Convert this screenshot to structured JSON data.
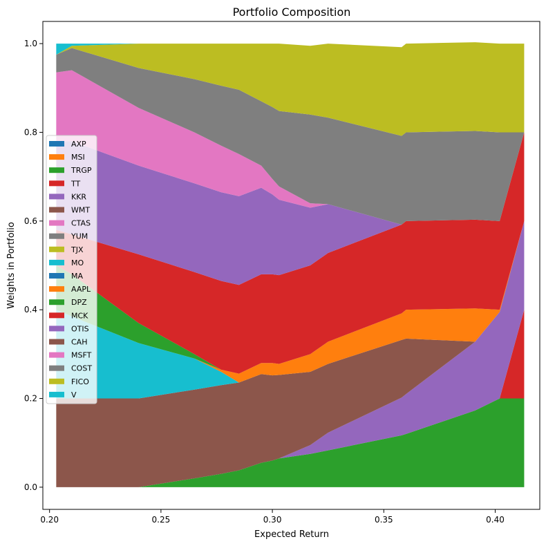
{
  "chart_data": {
    "type": "area",
    "title": "Portfolio Composition",
    "xlabel": "Expected Return",
    "ylabel": "Weights in Portfolio",
    "xlim": [
      0.197,
      0.42
    ],
    "ylim": [
      -0.05,
      1.05
    ],
    "xticks": [
      "0.20",
      "0.25",
      "0.30",
      "0.35",
      "0.40"
    ],
    "xtick_values": [
      0.2,
      0.25,
      0.3,
      0.35,
      0.4
    ],
    "yticks": [
      "0.0",
      "0.2",
      "0.4",
      "0.6",
      "0.8",
      "1.0"
    ],
    "ytick_values": [
      0.0,
      0.2,
      0.4,
      0.6,
      0.8,
      1.0
    ],
    "legend_position": "center-left",
    "x": [
      0.203,
      0.21,
      0.24,
      0.265,
      0.277,
      0.285,
      0.295,
      0.3,
      0.303,
      0.317,
      0.325,
      0.358,
      0.36,
      0.391,
      0.402,
      0.413
    ],
    "series": [
      {
        "name": "AXP",
        "color": "#1f77b4",
        "values": [
          0,
          0,
          0,
          0,
          0,
          0,
          0,
          0,
          0,
          0,
          0,
          0,
          0,
          0,
          0,
          0
        ]
      },
      {
        "name": "MSI",
        "color": "#ff7f0e",
        "values": [
          0,
          0,
          0,
          0,
          0,
          0,
          0,
          0,
          0,
          0,
          0,
          0,
          0,
          0,
          0,
          0
        ]
      },
      {
        "name": "TRGP",
        "color": "#2ca02c",
        "values": [
          0,
          0,
          0,
          0.02,
          0.03,
          0.038,
          0.055,
          0.06,
          0.065,
          0.075,
          0.083,
          0.117,
          0.12,
          0.173,
          0.2,
          0.2
        ]
      },
      {
        "name": "TT",
        "color": "#d62728",
        "values": [
          0,
          0,
          0,
          0,
          0,
          0,
          0,
          0,
          0,
          0,
          0,
          0,
          0,
          0,
          0,
          0.2
        ]
      },
      {
        "name": "KKR",
        "color": "#9467bd",
        "values": [
          0,
          0,
          0,
          0,
          0,
          0,
          0,
          0,
          0,
          0.02,
          0.04,
          0.085,
          0.09,
          0.155,
          0.195,
          0.2
        ]
      },
      {
        "name": "WMT",
        "color": "#8c564b",
        "values": [
          0.2,
          0.2,
          0.2,
          0.2,
          0.2,
          0.198,
          0.2,
          0.192,
          0.188,
          0.165,
          0.155,
          0.13,
          0.125,
          0,
          0,
          0
        ]
      },
      {
        "name": "CTAS",
        "color": "#e377c2",
        "values": [
          0,
          0,
          0,
          0,
          0,
          0,
          0,
          0,
          0,
          0,
          0,
          0,
          0,
          0,
          0,
          0
        ]
      },
      {
        "name": "YUM",
        "color": "#7f7f7f",
        "values": [
          0,
          0,
          0,
          0,
          0,
          0,
          0,
          0,
          0,
          0,
          0,
          0,
          0,
          0,
          0,
          0
        ]
      },
      {
        "name": "TJX",
        "color": "#bcbd22",
        "values": [
          0,
          0,
          0,
          0,
          0,
          0,
          0,
          0,
          0,
          0,
          0,
          0,
          0,
          0,
          0,
          0
        ]
      },
      {
        "name": "MO",
        "color": "#17becf",
        "values": [
          0.2,
          0.185,
          0.125,
          0.07,
          0.03,
          0,
          0,
          0,
          0,
          0,
          0,
          0,
          0,
          0,
          0,
          0
        ]
      },
      {
        "name": "MA",
        "color": "#1f77b4",
        "values": [
          0,
          0,
          0,
          0,
          0,
          0,
          0,
          0,
          0,
          0,
          0,
          0,
          0,
          0,
          0,
          0
        ]
      },
      {
        "name": "AAPL",
        "color": "#ff7f0e",
        "values": [
          0,
          0,
          0,
          0,
          0.005,
          0.02,
          0.025,
          0.028,
          0.025,
          0.04,
          0.05,
          0.06,
          0.065,
          0.075,
          0.005,
          0
        ]
      },
      {
        "name": "DPZ",
        "color": "#2ca02c",
        "values": [
          0.1,
          0.095,
          0.045,
          0.01,
          0,
          0,
          0,
          0,
          0,
          0,
          0,
          0,
          0,
          0,
          0,
          0
        ]
      },
      {
        "name": "MCK",
        "color": "#d62728",
        "values": [
          0.08,
          0.09,
          0.155,
          0.185,
          0.2,
          0.2,
          0.2,
          0.2,
          0.2,
          0.2,
          0.2,
          0.2,
          0.2,
          0.2,
          0.2,
          0.2
        ]
      },
      {
        "name": "OTIS",
        "color": "#9467bd",
        "values": [
          0.2,
          0.21,
          0.2,
          0.2,
          0.2,
          0.2,
          0.195,
          0.18,
          0.17,
          0.13,
          0.11,
          0,
          0,
          0,
          0,
          0
        ]
      },
      {
        "name": "CAH",
        "color": "#8c564b",
        "values": [
          0,
          0,
          0,
          0,
          0,
          0,
          0,
          0,
          0,
          0,
          0,
          0,
          0,
          0,
          0,
          0
        ]
      },
      {
        "name": "MSFT",
        "color": "#e377c2",
        "values": [
          0.155,
          0.16,
          0.13,
          0.115,
          0.105,
          0.095,
          0.05,
          0.035,
          0.03,
          0.01,
          0,
          0,
          0,
          0,
          0,
          0
        ]
      },
      {
        "name": "COST",
        "color": "#7f7f7f",
        "values": [
          0.04,
          0.05,
          0.09,
          0.12,
          0.135,
          0.145,
          0.145,
          0.162,
          0.17,
          0.2,
          0.195,
          0.2,
          0.2,
          0.2,
          0.2,
          0
        ]
      },
      {
        "name": "FICO",
        "color": "#bcbd22",
        "values": [
          0,
          0.005,
          0.055,
          0.08,
          0.095,
          0.104,
          0.13,
          0.143,
          0.152,
          0.155,
          0.167,
          0.2,
          0.2,
          0.2,
          0.2,
          0.2
        ]
      },
      {
        "name": "V",
        "color": "#17becf",
        "values": [
          0.025,
          0.005,
          0,
          0,
          0,
          0,
          0,
          0,
          0,
          0,
          0,
          0,
          0,
          0,
          0,
          0
        ]
      }
    ]
  }
}
